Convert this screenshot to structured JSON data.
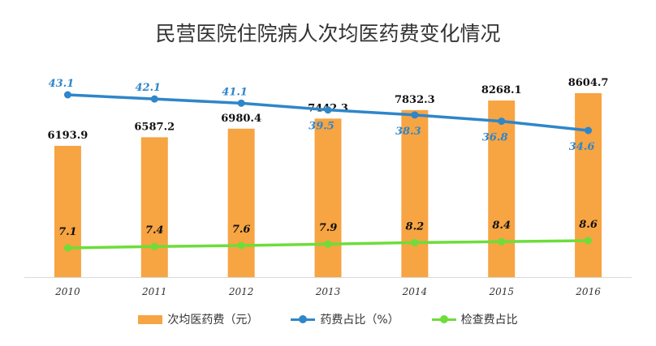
{
  "title": "民营医院住院病人次均医药费变化情况",
  "colors": {
    "bar": "#f7a443",
    "drug": "#2f86c9",
    "exam": "#6ddd3a"
  },
  "legend": [
    {
      "label": "次均医药费（元）",
      "icon": "bar-swatch-icon"
    },
    {
      "label": "药费占比（%）",
      "icon": "line-swatch-icon"
    },
    {
      "label": "检查费占比",
      "icon": "line-swatch-icon"
    }
  ],
  "chart_data": {
    "type": "bar",
    "title": "民营医院住院病人次均医药费变化情况",
    "categories": [
      "2010",
      "2011",
      "2012",
      "2013",
      "2014",
      "2015",
      "2016"
    ],
    "series": [
      {
        "name": "次均医药费（元）",
        "type": "bar",
        "values": [
          6193.9,
          6587.2,
          6980.4,
          7442.3,
          7832.3,
          8268.1,
          8604.7
        ],
        "labels": [
          "6193.9",
          "6587.2",
          "6980.4",
          "7442.3",
          "7832.3",
          "8268.1",
          "8604.7"
        ]
      },
      {
        "name": "药费占比（%）",
        "type": "line",
        "values": [
          43.1,
          42.1,
          41.1,
          39.5,
          38.3,
          36.8,
          34.6
        ],
        "labels": [
          "43.1",
          "42.1",
          "41.1",
          "39.5",
          "38.3",
          "36.8",
          "34.6"
        ]
      },
      {
        "name": "检查费占比",
        "type": "line",
        "values": [
          7.1,
          7.4,
          7.6,
          7.9,
          8.2,
          8.4,
          8.6
        ],
        "labels": [
          "7.1",
          "7.4",
          "7.6",
          "7.9",
          "8.2",
          "8.4",
          "8.6"
        ]
      }
    ],
    "grid": false,
    "legend_position": "bottom"
  }
}
